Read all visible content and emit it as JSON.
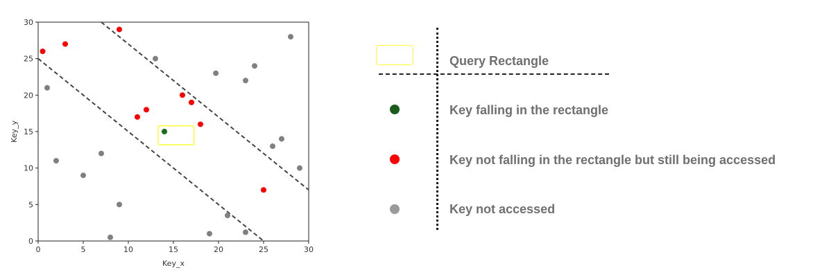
{
  "chart_data": {
    "type": "scatter",
    "xlabel": "Key_x",
    "ylabel": "Key_y",
    "xlim": [
      0,
      30
    ],
    "ylim": [
      0,
      30
    ],
    "xticks": [
      0,
      5,
      10,
      15,
      20,
      25,
      30
    ],
    "yticks": [
      0,
      5,
      10,
      15,
      20,
      25,
      30
    ],
    "grid": false,
    "series": [
      {
        "name": "Key falling in the rectangle",
        "color": "#1a6b1a",
        "points": [
          [
            14,
            15
          ]
        ]
      },
      {
        "name": "Key not falling in the rectangle but still being accessed",
        "color": "#ff0000",
        "points": [
          [
            0.5,
            26
          ],
          [
            3,
            27
          ],
          [
            9,
            29
          ],
          [
            11,
            17
          ],
          [
            12,
            18
          ],
          [
            16,
            20
          ],
          [
            17,
            19
          ],
          [
            18,
            16
          ],
          [
            25,
            7
          ]
        ]
      },
      {
        "name": "Key not accessed",
        "color": "#808080",
        "points": [
          [
            1,
            21
          ],
          [
            2,
            11
          ],
          [
            5,
            9
          ],
          [
            7,
            12
          ],
          [
            8,
            0.5
          ],
          [
            9,
            5
          ],
          [
            13,
            25
          ],
          [
            19,
            1
          ],
          [
            19.7,
            23
          ],
          [
            21,
            3.5
          ],
          [
            23,
            1.2
          ],
          [
            23,
            22
          ],
          [
            24,
            24
          ],
          [
            26,
            13
          ],
          [
            27,
            14
          ],
          [
            28,
            28
          ],
          [
            29,
            10
          ]
        ]
      }
    ],
    "boundary_lines": [
      {
        "from": [
          0,
          25
        ],
        "to": [
          25,
          0
        ],
        "style": "dashed",
        "color": "#444444"
      },
      {
        "from": [
          7,
          30
        ],
        "to": [
          30,
          7
        ],
        "style": "dashed",
        "color": "#444444"
      }
    ],
    "query_rectangle": {
      "x_range": [
        13.3,
        17.3
      ],
      "y_range": [
        13.2,
        15.8
      ],
      "color": "#ffff33"
    }
  },
  "legend": {
    "query_rectangle_label": "Query Rectangle",
    "in_rectangle_label": "Key falling in the rectangle",
    "accessed_label": "Key not falling in the rectangle but still being accessed",
    "not_accessed_label": "Key not accessed",
    "rect_color": "#ffff33",
    "in_color": "#1a5c1a",
    "accessed_color": "#ff0000",
    "not_accessed_color": "#9a9a9a"
  }
}
